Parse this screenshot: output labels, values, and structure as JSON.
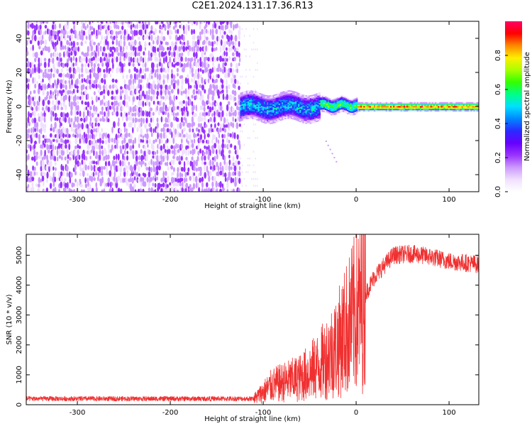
{
  "title": "C2E1.2024.131.17.36.R13",
  "chart_data": [
    {
      "type": "heatmap",
      "xlabel": "Height of straight line (km)",
      "ylabel": "Frequency (Hz)",
      "xlim": [
        -355,
        132
      ],
      "ylim": [
        -50,
        50
      ],
      "xticks": [
        -300,
        -200,
        -100,
        0,
        100
      ],
      "yticks": [
        -40,
        -20,
        0,
        20,
        40
      ],
      "colorbar": {
        "label": "Normalized spectral amplitude",
        "range": [
          0,
          1
        ],
        "ticks": [
          0.0,
          0.2,
          0.4,
          0.6,
          0.8
        ],
        "colormap": [
          "#ffffff",
          "#f0e0ff",
          "#cc99ff",
          "#9933ff",
          "#6600ff",
          "#2a2aff",
          "#0088ff",
          "#00e0ff",
          "#00ff88",
          "#33ff00",
          "#aaff00",
          "#ffee00",
          "#ff8800",
          "#ff0000",
          "#ff0066"
        ]
      },
      "regions": [
        {
          "x": [
            -355,
            -125
          ],
          "freq": [
            -50,
            50
          ],
          "description_level": 0.15
        },
        {
          "x": [
            -125,
            -40
          ],
          "freq": [
            -8,
            8
          ],
          "description_level": 0.45
        },
        {
          "x": [
            -40,
            0
          ],
          "freq": [
            -4,
            4
          ],
          "description_level": 0.6
        },
        {
          "x": [
            0,
            132
          ],
          "freq": [
            -2,
            2
          ],
          "description_level": 0.85
        }
      ]
    },
    {
      "type": "line",
      "xlabel": "Height of straight line (km)",
      "ylabel": "SNR (10 * v/v)",
      "xlim": [
        -355,
        132
      ],
      "ylim": [
        0,
        5700
      ],
      "xticks": [
        -300,
        -200,
        -100,
        0,
        100
      ],
      "yticks": [
        0,
        1000,
        2000,
        3000,
        4000,
        5000
      ],
      "color": "#f03030",
      "trend": {
        "x": [
          -355,
          -110,
          -90,
          -60,
          -40,
          -20,
          0,
          20,
          40,
          60,
          80,
          100,
          132
        ],
        "y": [
          200,
          200,
          650,
          900,
          1300,
          2000,
          3100,
          4300,
          5000,
          5050,
          4950,
          4800,
          4700
        ]
      }
    }
  ]
}
